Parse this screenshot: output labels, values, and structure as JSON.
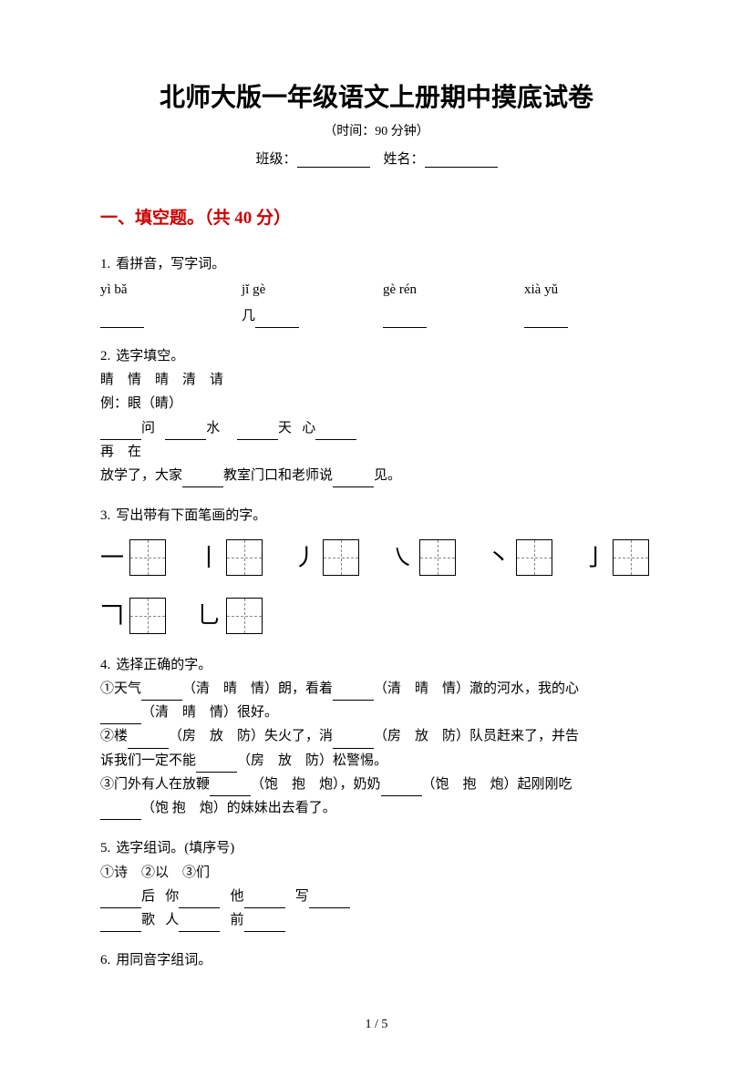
{
  "title": "北师大版一年级语文上册期中摸底试卷",
  "subtitle": "（时间：90 分钟）",
  "info": {
    "class_label": "班级：",
    "name_label": "姓名："
  },
  "section1": {
    "heading": "一、填空题。（共 40 分）"
  },
  "q1": {
    "num": "1.",
    "stem": "看拼音，写字词。",
    "pinyin": [
      "yì  bǎ",
      "jǐ  gè",
      "gè  rén",
      "xià  yǔ"
    ],
    "mid": "几"
  },
  "q2": {
    "num": "2.",
    "stem": "选字填空。",
    "options": "睛　情　晴　清　请",
    "example": "例：眼（睛）",
    "line1_parts": [
      "问",
      "水",
      "天",
      "心"
    ],
    "line2": "再　在",
    "line3_a": "放学了，大家",
    "line3_b": "教室门口和老师说",
    "line3_c": "见。"
  },
  "q3": {
    "num": "3.",
    "stem": "写出带有下面笔画的字。",
    "strokes": [
      "一",
      "丨",
      "丿",
      "㇏",
      "丶",
      "亅",
      "𠃍",
      "乚"
    ]
  },
  "q4": {
    "num": "4.",
    "stem": "选择正确的字。",
    "l1a": "①天气",
    "l1b": "（清　晴　情）朗，看着",
    "l1c": "（清　晴　情）澈的河水，我的心",
    "l2a": "（清　晴　情）很好。",
    "l3a": "②楼",
    "l3b": "（房　放　防）失火了，消",
    "l3c": "（房　放　防）队员赶来了，并告",
    "l4a": "诉我们一定不能",
    "l4b": "（房　放　防）松警惕。",
    "l5a": "③门外有人在放鞭",
    "l5b": "（饱　抱　炮），奶奶",
    "l5c": "（饱　抱　炮）起刚刚吃",
    "l6a": "（饱 抱　炮）的妹妹出去看了。"
  },
  "q5": {
    "num": "5.",
    "stem": "选字组词。(填序号)",
    "opts": "①诗　②以　③们",
    "w": [
      "后",
      "你",
      "他",
      "写",
      "歌",
      "人",
      "前"
    ]
  },
  "q6": {
    "num": "6.",
    "stem": "用同音字组词。"
  },
  "footer": "1 / 5"
}
